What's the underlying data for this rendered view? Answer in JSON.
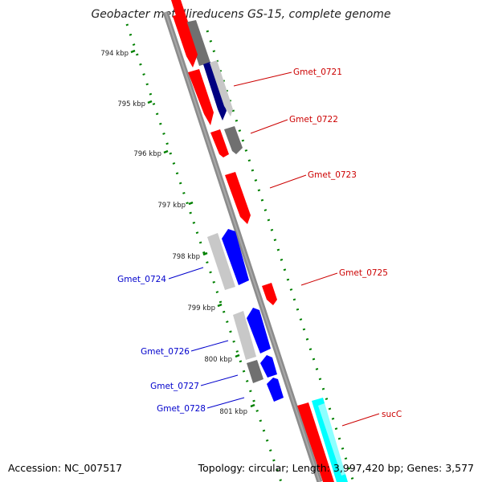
{
  "title": "Geobacter metallireducens GS-15, complete genome",
  "accession": "Accession: NC_007517",
  "topology": "Topology: circular; Length: 3,997,420 bp; Genes: 3,577",
  "colors": {
    "backbone": "#8c8c8c",
    "forward_cds": "#ff0000",
    "reverse_cds": "#0000ff",
    "gray_feature": "#808080",
    "light_gray_feature": "#c8c8c8",
    "cyan_feature": "#00ffff",
    "navy_feature": "#000080",
    "tick_dots": "#008000",
    "label_forward": "#cc0000",
    "label_reverse": "#0000cc"
  },
  "kbp_ticks": [
    "794 kbp",
    "795 kbp",
    "796 kbp",
    "797 kbp",
    "798 kbp",
    "799 kbp",
    "800 kbp",
    "801 kbp"
  ],
  "gene_labels": [
    {
      "text": "Gmet_0721",
      "strand": "forward"
    },
    {
      "text": "Gmet_0722",
      "strand": "forward"
    },
    {
      "text": "Gmet_0723",
      "strand": "forward"
    },
    {
      "text": "Gmet_0725",
      "strand": "forward"
    },
    {
      "text": "sucC",
      "strand": "forward"
    },
    {
      "text": "Gmet_0724",
      "strand": "reverse"
    },
    {
      "text": "Gmet_0726",
      "strand": "reverse"
    },
    {
      "text": "Gmet_0727",
      "strand": "reverse"
    },
    {
      "text": "Gmet_0728",
      "strand": "reverse"
    }
  ]
}
